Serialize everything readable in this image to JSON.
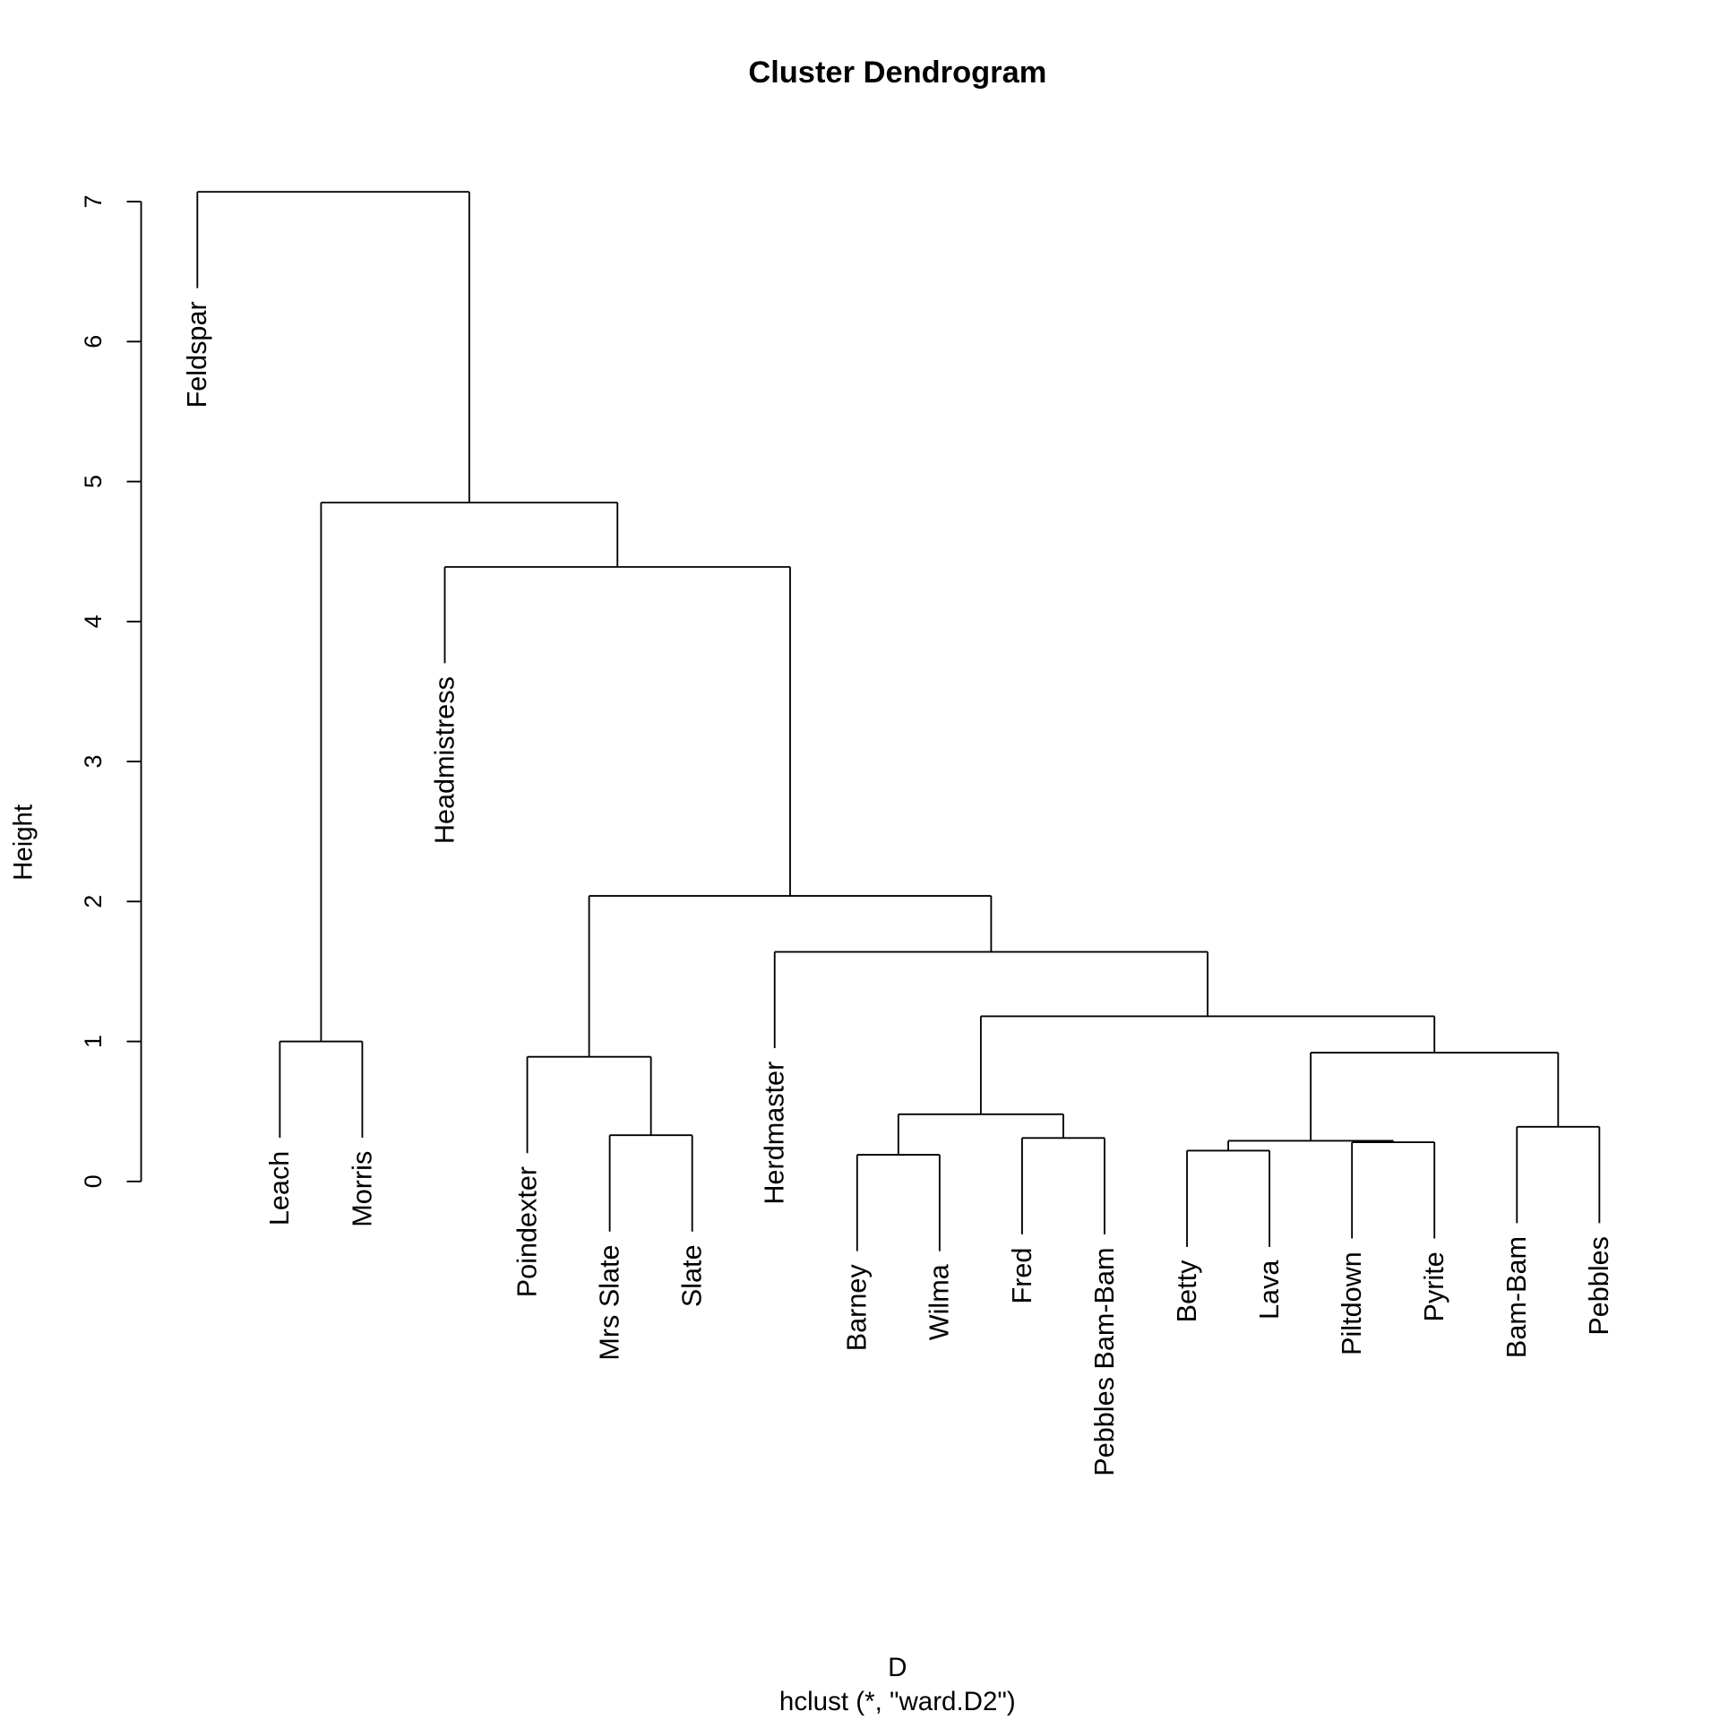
{
  "chart_data": {
    "type": "dendrogram",
    "title": "Cluster Dendrogram",
    "xlabel": "D",
    "sub": "hclust (*, \"ward.D2\")",
    "ylabel": "Height",
    "ylim": [
      0,
      7.4
    ],
    "yticks": [
      0,
      1,
      2,
      3,
      4,
      5,
      6,
      7
    ],
    "leaves": [
      "Feldspar",
      "Leach",
      "Morris",
      "Headmistress",
      "Poindexter",
      "Mrs Slate",
      "Slate",
      "Herdmaster",
      "Barney",
      "Wilma",
      "Fred",
      "Pebbles Bam-Bam",
      "Betty",
      "Lava",
      "Piltdown",
      "Pyrite",
      "Bam-Bam",
      "Pebbles"
    ],
    "merges": [
      {
        "a": -9,
        "b": -10,
        "height": 0.19
      },
      {
        "a": -13,
        "b": -14,
        "height": 0.22
      },
      {
        "a": -15,
        "b": -16,
        "height": 0.28
      },
      {
        "a": 2,
        "b": 3,
        "height": 0.29
      },
      {
        "a": -11,
        "b": -12,
        "height": 0.31
      },
      {
        "a": -6,
        "b": -7,
        "height": 0.33
      },
      {
        "a": -17,
        "b": -18,
        "height": 0.39
      },
      {
        "a": 1,
        "b": 5,
        "height": 0.48
      },
      {
        "a": -5,
        "b": 6,
        "height": 0.89
      },
      {
        "a": 4,
        "b": 7,
        "height": 0.92
      },
      {
        "a": -2,
        "b": -3,
        "height": 1.0
      },
      {
        "a": 8,
        "b": 10,
        "height": 1.18
      },
      {
        "a": -8,
        "b": 12,
        "height": 1.64
      },
      {
        "a": 9,
        "b": 13,
        "height": 2.04
      },
      {
        "a": -4,
        "b": 14,
        "height": 4.39
      },
      {
        "a": 11,
        "b": 15,
        "height": 4.85
      },
      {
        "a": -1,
        "b": 16,
        "height": 7.07
      }
    ]
  }
}
